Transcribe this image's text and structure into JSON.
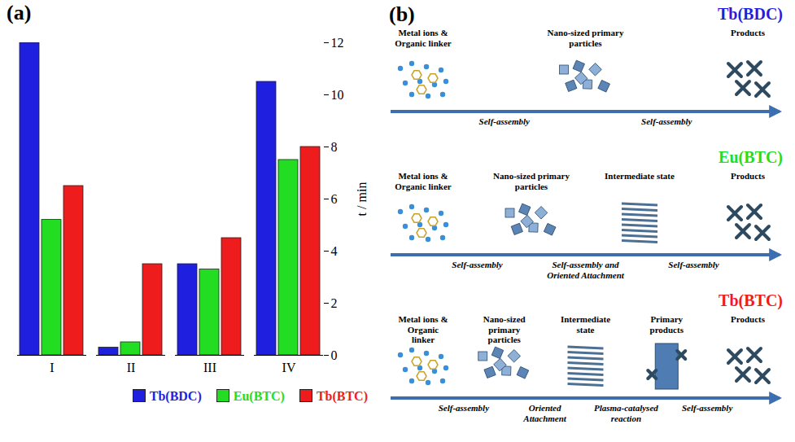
{
  "chart_data": {
    "type": "bar",
    "panel_label": "(a)",
    "categories": [
      "I",
      "II",
      "III",
      "IV"
    ],
    "series": [
      {
        "name": "Tb(BDC)",
        "color": "#1f1fe0",
        "values": [
          12,
          0.3,
          3.5,
          10.5
        ]
      },
      {
        "name": "Eu(BTC)",
        "color": "#22dd22",
        "values": [
          5.2,
          0.5,
          3.3,
          7.5
        ]
      },
      {
        "name": "Tb(BTC)",
        "color": "#ee1c1c",
        "values": [
          6.5,
          3.5,
          4.5,
          8
        ]
      }
    ],
    "y_label": "t / min",
    "ylim": [
      0,
      12
    ],
    "yticks": [
      0,
      2,
      4,
      6,
      8,
      10,
      12
    ],
    "grid": false,
    "legend": "bottom"
  },
  "diagram": {
    "panel_label": "(b)",
    "rows": [
      {
        "title": "Tb(BDC)",
        "color": "#1f1fe0",
        "stages": [
          "Metal ions & Organic linker",
          "Nano-sized primary particles",
          "Products"
        ],
        "steps": [
          "Self-assembly",
          "Self-assembly"
        ]
      },
      {
        "title": "Eu(BTC)",
        "color": "#22dd22",
        "stages": [
          "Metal ions & Organic linker",
          "Nano-sized primary particles",
          "Intermediate state",
          "Products"
        ],
        "steps": [
          "Self-assembly",
          "Self-assembly and Oriented Attachment",
          "Self-assembly"
        ]
      },
      {
        "title": "Tb(BTC)",
        "color": "#ee1c1c",
        "stages": [
          "Metal ions & Organic linker",
          "Nano-sized primary particles",
          "Intermediate state",
          "Primary products",
          "Products"
        ],
        "steps": [
          "Self-assembly",
          "Oriented Attachment",
          "Plasma-catalysed reaction",
          "Self-assembly"
        ]
      }
    ]
  }
}
